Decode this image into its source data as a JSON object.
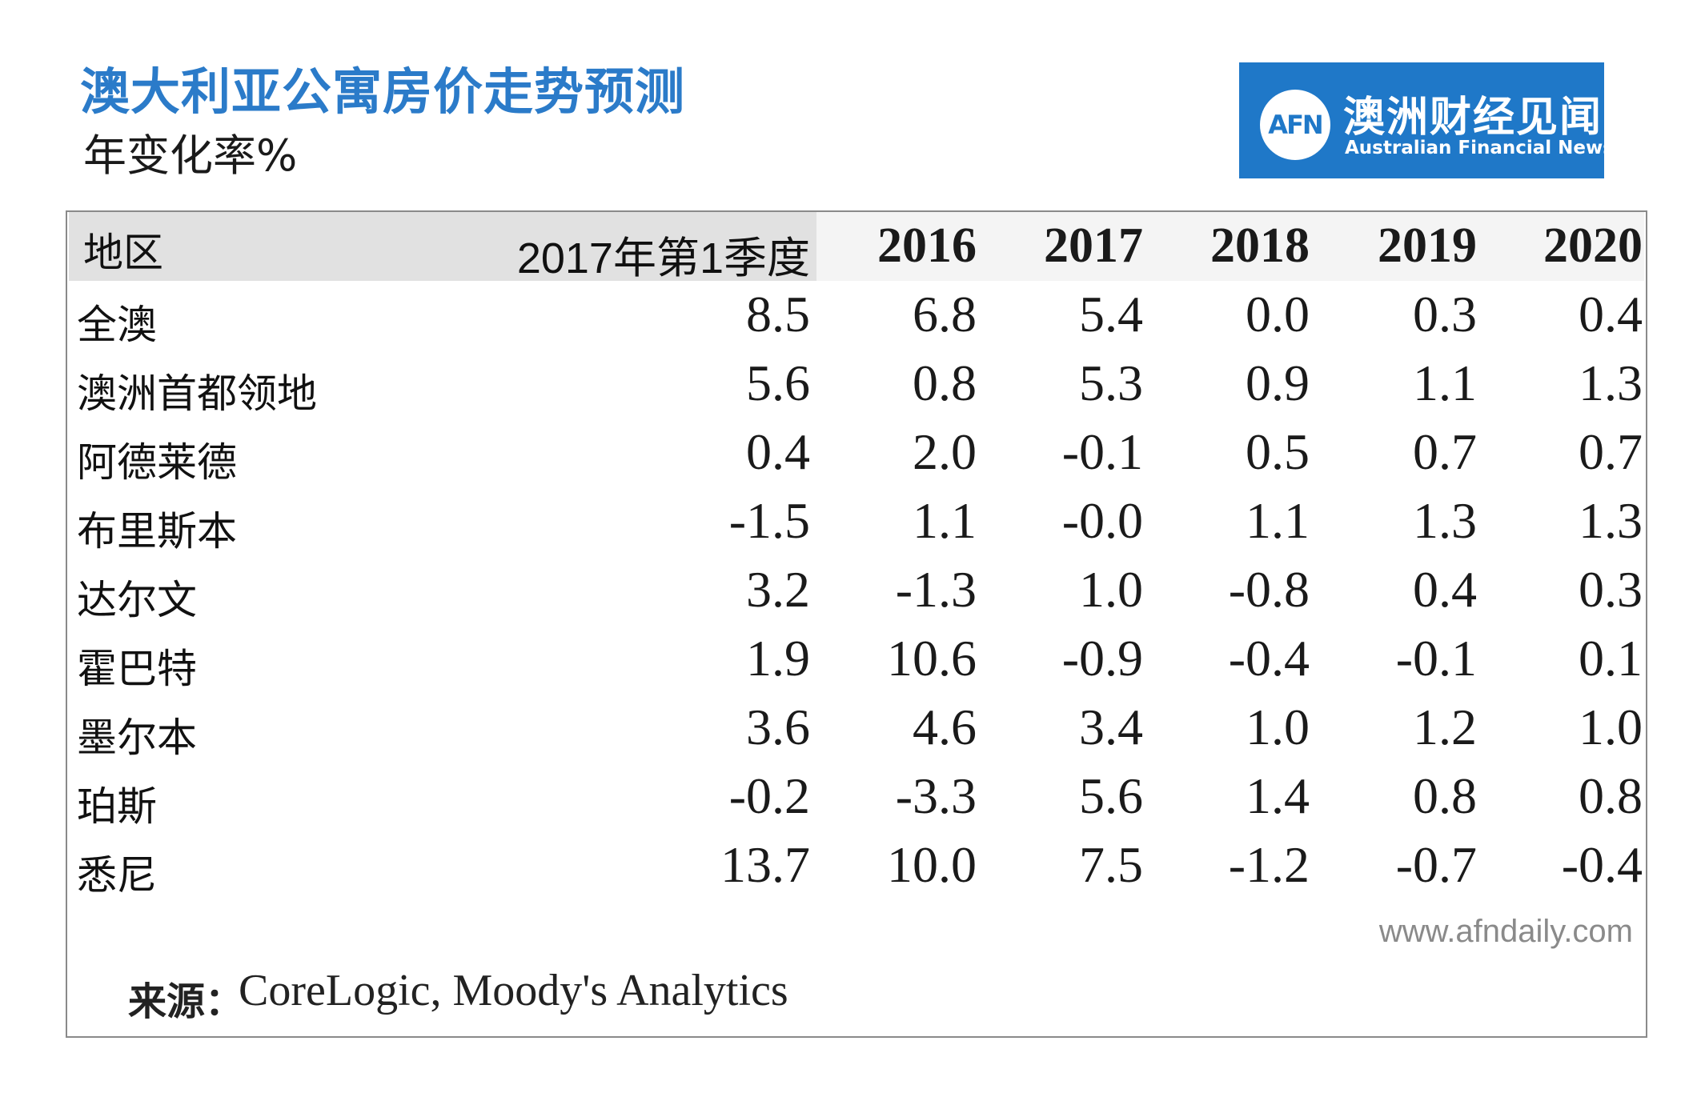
{
  "header": {
    "title": "澳大利亚公寓房价走势预测",
    "subtitle": "年变化率%"
  },
  "logo": {
    "mark": "AFN",
    "name_cn": "澳洲财经见闻",
    "name_en": "Australian Financial News"
  },
  "chart_data": {
    "type": "table",
    "columns": [
      "地区",
      "2017年第1季度",
      "2016",
      "2017",
      "2018",
      "2019",
      "2020"
    ],
    "rows": [
      {
        "region": "全澳",
        "values": [
          "8.5",
          "6.8",
          "5.4",
          "0.0",
          "0.3",
          "0.4"
        ]
      },
      {
        "region": "澳洲首都领地",
        "values": [
          "5.6",
          "0.8",
          "5.3",
          "0.9",
          "1.1",
          "1.3"
        ]
      },
      {
        "region": "阿德莱德",
        "values": [
          "0.4",
          "2.0",
          "-0.1",
          "0.5",
          "0.7",
          "0.7"
        ]
      },
      {
        "region": "布里斯本",
        "values": [
          "-1.5",
          "1.1",
          "-0.0",
          "1.1",
          "1.3",
          "1.3"
        ]
      },
      {
        "region": "达尔文",
        "values": [
          "3.2",
          "-1.3",
          "1.0",
          "-0.8",
          "0.4",
          "0.3"
        ]
      },
      {
        "region": "霍巴特",
        "values": [
          "1.9",
          "10.6",
          "-0.9",
          "-0.4",
          "-0.1",
          "0.1"
        ]
      },
      {
        "region": "墨尔本",
        "values": [
          "3.6",
          "4.6",
          "3.4",
          "1.0",
          "1.2",
          "1.0"
        ]
      },
      {
        "region": "珀斯",
        "values": [
          "-0.2",
          "-3.3",
          "5.6",
          "1.4",
          "0.8",
          "0.8"
        ]
      },
      {
        "region": "悉尼",
        "values": [
          "13.7",
          "10.0",
          "7.5",
          "-1.2",
          "-0.7",
          "-0.4"
        ]
      }
    ]
  },
  "footer": {
    "source_label": "来源：",
    "source_text": "CoreLogic, Moody's Analytics",
    "website": "www.afndaily.com"
  },
  "colors": {
    "title": "#2b7bc9",
    "logo_bg": "#1f78c8",
    "header_band": "#e1e1e1"
  }
}
